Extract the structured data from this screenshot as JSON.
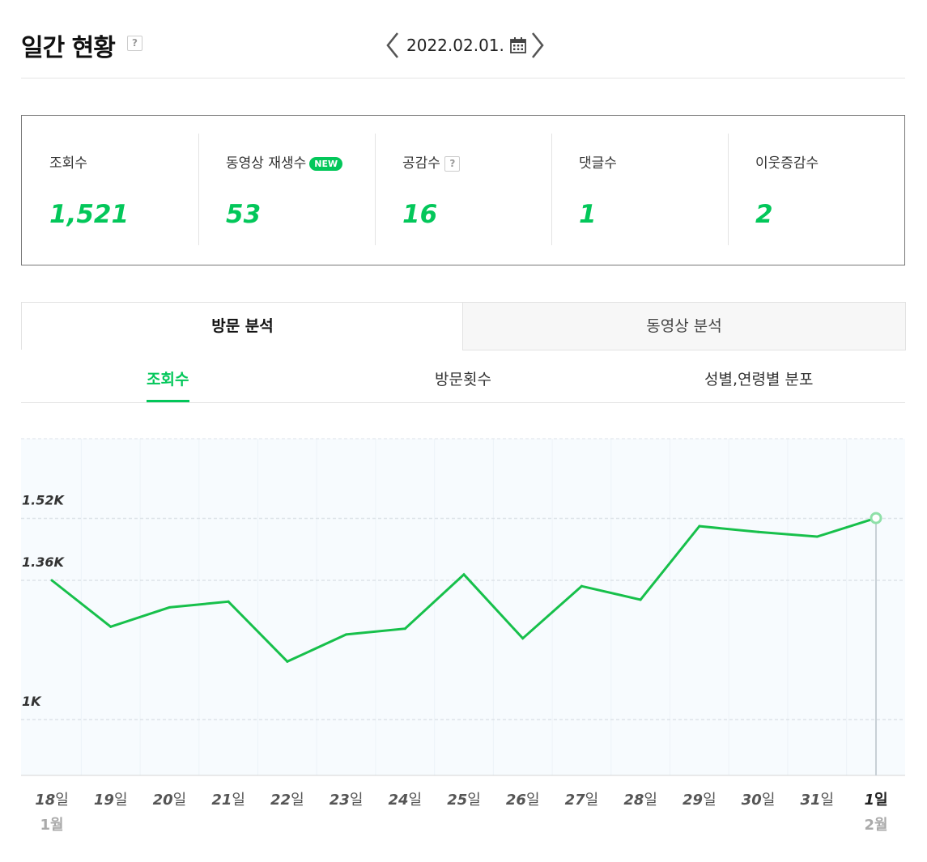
{
  "header": {
    "title": "일간 현황",
    "help_glyph": "?",
    "date": "2022.02.01."
  },
  "stats": [
    {
      "label": "조회수",
      "value": "1,521"
    },
    {
      "label": "동영상 재생수",
      "value": "53",
      "badge": "NEW"
    },
    {
      "label": "공감수",
      "value": "16",
      "help": "?"
    },
    {
      "label": "댓글수",
      "value": "1"
    },
    {
      "label": "이웃증감수",
      "value": "2"
    }
  ],
  "tabs": [
    "방문 분석",
    "동영상 분석"
  ],
  "subtabs": [
    "조회수",
    "방문횟수",
    "성별,연령별 분포"
  ],
  "colors": {
    "accent": "#03c75a",
    "line": "#17c04b"
  },
  "chart_data": {
    "type": "line",
    "x": [
      "18",
      "19",
      "20",
      "21",
      "22",
      "23",
      "24",
      "25",
      "26",
      "27",
      "28",
      "29",
      "30",
      "31",
      "1"
    ],
    "x_suffix": "일",
    "x_month_labels": [
      {
        "index": 0,
        "label": "1월"
      },
      {
        "index": 14,
        "label": "2월"
      }
    ],
    "series": [
      {
        "values": [
          1360,
          1240,
          1290,
          1305,
          1150,
          1220,
          1235,
          1375,
          1210,
          1345,
          1310,
          1500,
          1485,
          1473,
          1521
        ]
      }
    ],
    "yticks": [
      {
        "value": 1000,
        "label": "1K"
      },
      {
        "value": 1360,
        "label": "1.36K"
      },
      {
        "value": 1520,
        "label": "1.52K"
      }
    ],
    "highlight_index": 14,
    "grid": true
  }
}
